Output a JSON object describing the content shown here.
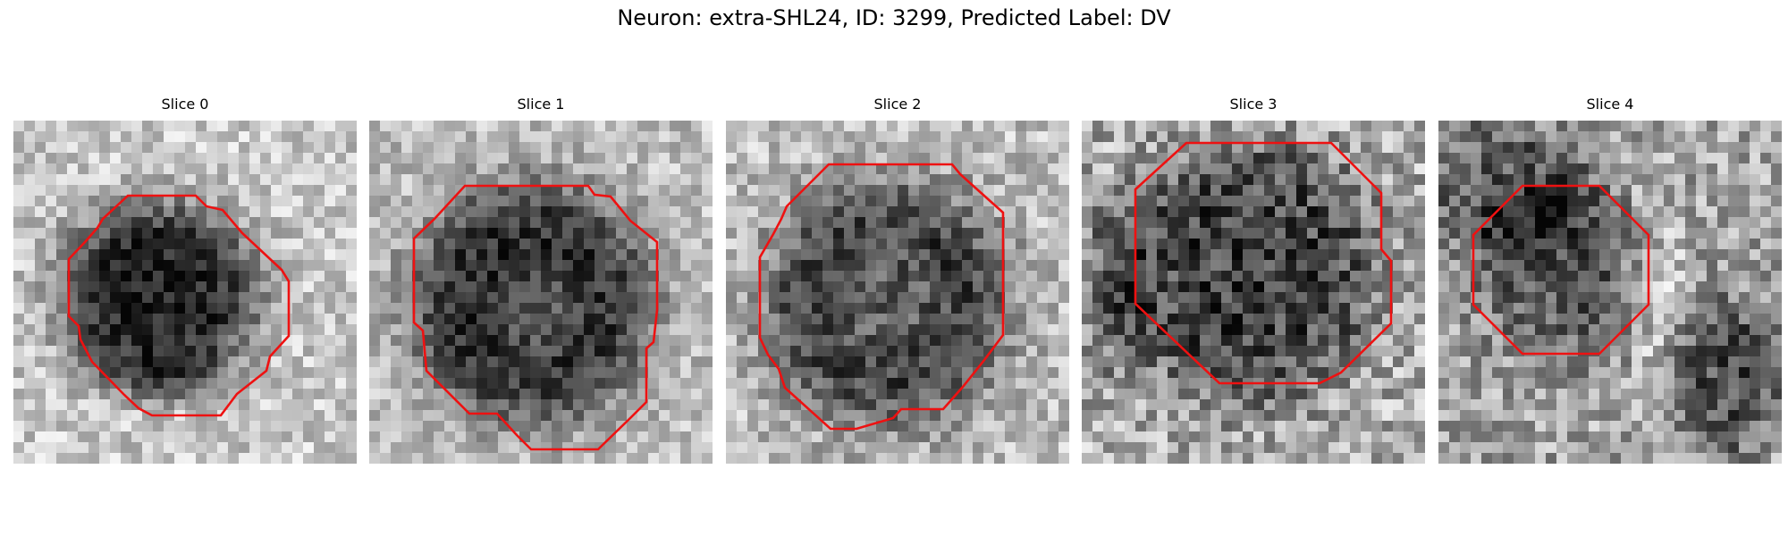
{
  "figure": {
    "title": "Neuron: extra-SHL24, ID: 3299, Predicted Label: DV"
  },
  "panels": [
    {
      "title": "Slice 0"
    },
    {
      "title": "Slice 1"
    },
    {
      "title": "Slice 2"
    },
    {
      "title": "Slice 3"
    },
    {
      "title": "Slice 4"
    }
  ],
  "colors": {
    "contour": "#ee1111",
    "colormap": "gray"
  }
}
